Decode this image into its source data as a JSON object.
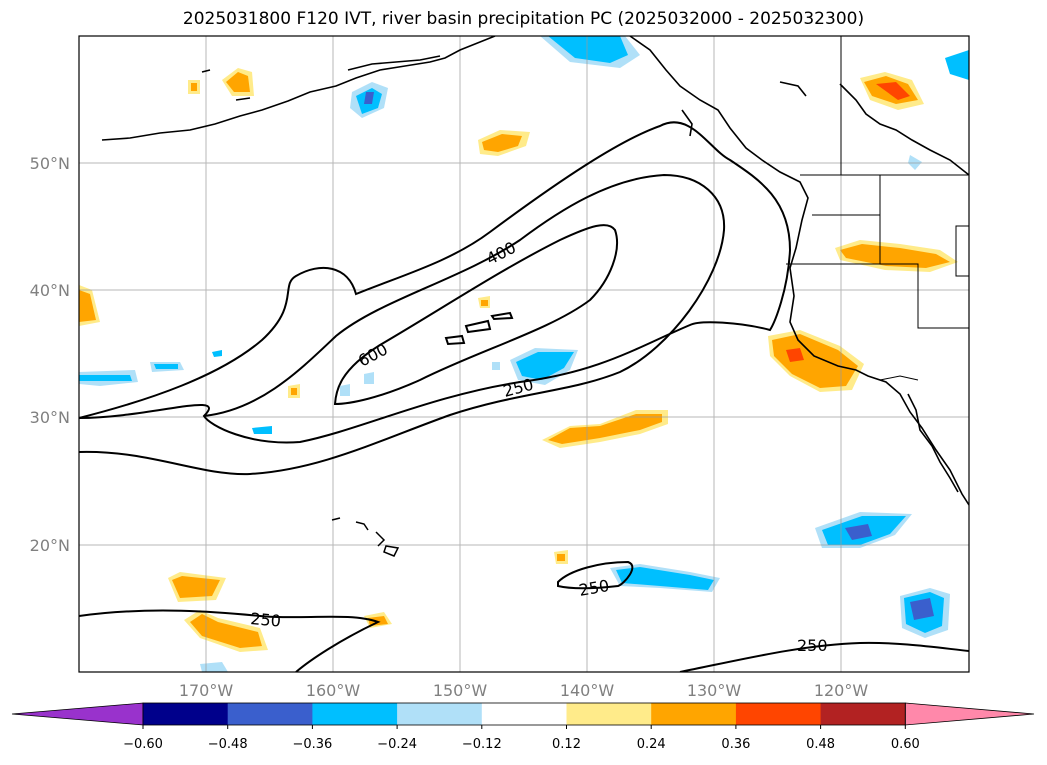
{
  "title": "2025031800 F120 IVT, river basin precipitation PC (2025032000 - 2025032300)",
  "map": {
    "lon_labels": [
      "170°W",
      "160°W",
      "150°W",
      "140°W",
      "130°W",
      "120°W"
    ],
    "lat_labels": [
      "50°N",
      "40°N",
      "30°N",
      "20°N"
    ],
    "contour_labels": [
      "400",
      "600",
      "250",
      "250",
      "250",
      "250"
    ]
  },
  "colorbar": {
    "ticks": [
      "−0.60",
      "−0.48",
      "−0.36",
      "−0.24",
      "−0.12",
      "0.12",
      "0.24",
      "0.36",
      "0.48",
      "0.60"
    ],
    "colors": [
      "#9932cc",
      "#00008b",
      "#3a5fcd",
      "#00bfff",
      "#b0e0f8",
      "#ffffff",
      "#ffeb8a",
      "#ffa500",
      "#ff4500",
      "#b22222",
      "#ff88aa"
    ]
  }
}
